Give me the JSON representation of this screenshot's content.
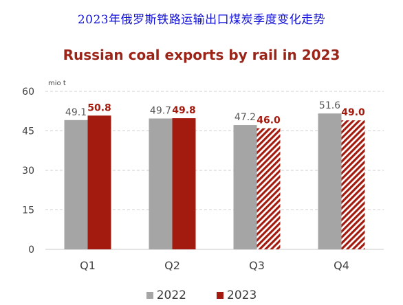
{
  "header": {
    "chinese_title": "2023年俄罗斯铁路运输出口煤炭季度变化走势"
  },
  "colors": {
    "series_2022": "#a5a5a5",
    "series_2023": "#a31a0e",
    "label_2022": "#595959",
    "label_2023": "#a31a0e",
    "grid": "#cfcfcf"
  },
  "chart_data": {
    "type": "bar",
    "title": "Russian coal exports by rail in 2023",
    "ylabel": "mio t",
    "xlabel": "",
    "ylim": [
      0,
      60
    ],
    "yticks": [
      0,
      15,
      30,
      45,
      60
    ],
    "categories": [
      "Q1",
      "Q2",
      "Q3",
      "Q4"
    ],
    "grid": "horizontal dashed",
    "legend_position": "bottom",
    "series": [
      {
        "name": "2022",
        "values": [
          49.1,
          49.7,
          47.2,
          51.6
        ],
        "labels": [
          "49.1",
          "49.7",
          "47.2",
          "51.6"
        ],
        "hatched": [
          false,
          false,
          false,
          false
        ]
      },
      {
        "name": "2023",
        "values": [
          50.8,
          49.8,
          46.0,
          49.0
        ],
        "labels": [
          "50.8",
          "49.8",
          "46.0",
          "49.0"
        ],
        "hatched": [
          false,
          false,
          true,
          true
        ]
      }
    ]
  }
}
